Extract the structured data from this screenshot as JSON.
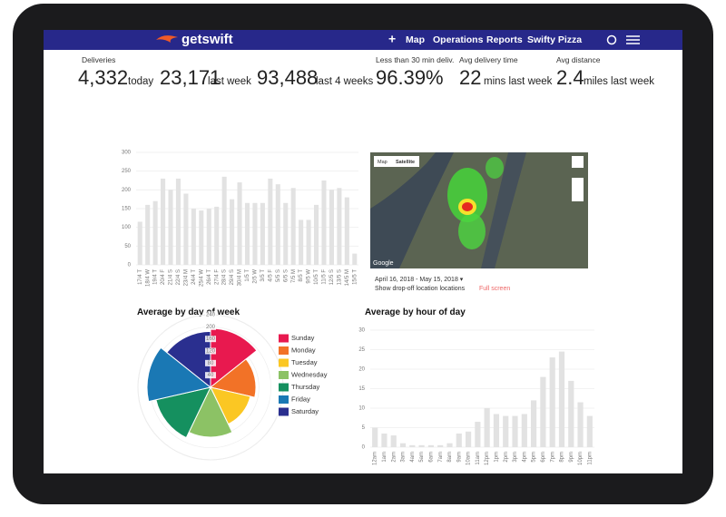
{
  "nav": {
    "brand": "getswift",
    "add": "+",
    "items": [
      "Map",
      "Operations",
      "Reports",
      "Swifty Pizza"
    ]
  },
  "stats": {
    "label": "Deliveries",
    "items": [
      {
        "value": "4,332",
        "unit": "today"
      },
      {
        "value": "23,171",
        "unit": "last week"
      },
      {
        "value": "93,488",
        "unit": "last 4 weeks"
      }
    ]
  },
  "kpis": [
    {
      "label": "Less than 30 min deliv.",
      "value": "96.39%"
    },
    {
      "label": "Avg delivery time",
      "value": "22",
      "unit": "mins last week"
    },
    {
      "label": "Avg distance",
      "value": "2.4",
      "unit": "miles last week"
    }
  ],
  "map": {
    "tabs": [
      "Map",
      "Satellite"
    ],
    "brand": "Google",
    "date_range": "April 16, 2018 - May 15, 2018 ▾",
    "toggle": "Show drop-off location locations",
    "fullscreen": "Full screen"
  },
  "chart_data": [
    {
      "type": "bar",
      "color": "#e2e2e2",
      "categories": [
        "17/4 T",
        "18/4 W",
        "19/4 T",
        "20/4 F",
        "21/4 S",
        "22/4 S",
        "23/4 M",
        "24/4 T",
        "25/4 W",
        "26/4 T",
        "27/4 F",
        "28/4 S",
        "29/4 S",
        "30/4 M",
        "1/5 T",
        "2/5 W",
        "3/5 T",
        "4/5 F",
        "5/5 S",
        "6/5 S",
        "7/5 M",
        "8/5 T",
        "9/5 W",
        "10/5 T",
        "11/5 F",
        "12/5 S",
        "13/5 S",
        "14/5 M",
        "15/5 T"
      ],
      "values": [
        115,
        160,
        170,
        230,
        200,
        230,
        190,
        150,
        145,
        150,
        155,
        235,
        175,
        220,
        165,
        165,
        165,
        230,
        215,
        165,
        205,
        120,
        120,
        160,
        225,
        200,
        205,
        180,
        30
      ],
      "ylim": [
        0,
        300
      ],
      "yticks": [
        0,
        50,
        100,
        150,
        200,
        250,
        300
      ],
      "grid": true
    },
    {
      "type": "polar",
      "title": "Average by day of week",
      "categories": [
        "Sunday",
        "Monday",
        "Tuesday",
        "Wednesday",
        "Thursday",
        "Friday",
        "Saturday"
      ],
      "colors": [
        "#e8194f",
        "#f27227",
        "#fbc723",
        "#8cc265",
        "#15905f",
        "#1a78b4",
        "#2a2f8f"
      ],
      "values": [
        195,
        150,
        135,
        165,
        185,
        210,
        185
      ],
      "rlim": [
        0,
        240
      ],
      "rticks": [
        40,
        80,
        120,
        160,
        200,
        240
      ]
    },
    {
      "type": "bar",
      "title": "Average by hour of day",
      "color": "#e2e2e2",
      "categories": [
        "12am",
        "1am",
        "2am",
        "3am",
        "4am",
        "5am",
        "6am",
        "7am",
        "8am",
        "9am",
        "10am",
        "11am",
        "12pm",
        "1pm",
        "2pm",
        "3pm",
        "4pm",
        "5pm",
        "6pm",
        "7pm",
        "8pm",
        "9pm",
        "10pm",
        "11pm"
      ],
      "values": [
        5,
        3.5,
        3,
        1,
        0.5,
        0.5,
        0.5,
        0.5,
        1,
        3.5,
        4,
        6.5,
        10,
        8.5,
        8,
        8,
        8.5,
        12,
        18,
        23,
        24.5,
        17,
        11.5,
        8
      ],
      "ylim": [
        0,
        30
      ],
      "yticks": [
        0,
        5,
        10,
        15,
        20,
        25,
        30
      ],
      "grid": true
    }
  ]
}
